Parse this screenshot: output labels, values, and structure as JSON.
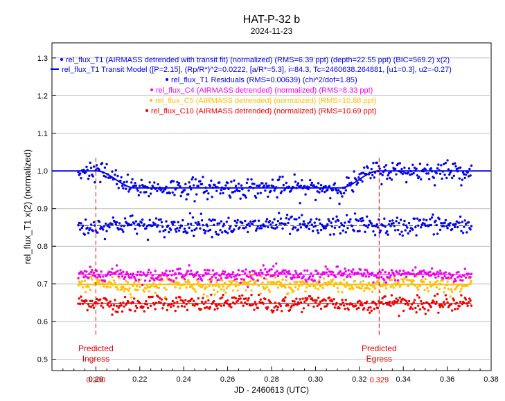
{
  "chart_data": {
    "type": "scatter",
    "title": "HAT-P-32 b",
    "subtitle": "2024-11-23",
    "xlabel": "JD - 2460613 (UTC)",
    "ylabel": "rel_flux_T1 x(2) (normalized)",
    "xlim": [
      0.18,
      0.38
    ],
    "ylim": [
      0.47,
      1.34
    ],
    "xticks": [
      0.2,
      0.22,
      0.24,
      0.26,
      0.28,
      0.3,
      0.32,
      0.34,
      0.36,
      0.38
    ],
    "xtick_labels": [
      "0.20",
      "0.22",
      "0.24",
      "0.26",
      "0.28",
      "0.30",
      "0.32",
      "0.34",
      "0.36",
      "0.38"
    ],
    "yticks": [
      0.5,
      0.6,
      0.7,
      0.8,
      0.9,
      1.0,
      1.1,
      1.2,
      1.3
    ],
    "ytick_labels": [
      "0.5",
      "0.6",
      "0.7",
      "0.8",
      "0.9",
      "1.0",
      "1.1",
      "1.2",
      "1.3"
    ],
    "grid": "horizontal",
    "legend_position": "top-center",
    "legend": [
      {
        "label": "rel_flux_T1 (AIRMASS detrended with transit fit) (normalized) (RMS=6.39 ppt) (depth=22.55 ppt) (BIC=569.2) x(2)",
        "color": "#0000ee",
        "marker": "dot"
      },
      {
        "label": "rel_flux_T1 Transit Model ([P=2.15], (Rp/R*)^2=0.0222, [a/R*=5.3], i=84.3, Tc=2460638.264881, [u1=0.3], u2=-0.27)",
        "color": "#0000ee",
        "marker": "line"
      },
      {
        "label": "rel_flux_T1 Residuals (RMS=0.00639) (chi^2/dof=1.85)",
        "color": "#0000ee",
        "marker": "dot"
      },
      {
        "label": "rel_flux_C4 (AIRMASS detrended) (normalized) (RMS=8.33 ppt)",
        "color": "#ee00ee",
        "marker": "dot"
      },
      {
        "label": "rel_flux_C5 (AIRMASS detrended) (normalized) (RMS=10.88 ppt)",
        "color": "#ffc000",
        "marker": "dot"
      },
      {
        "label": "rel_flux_C10 (AIRMASS detrended) (normalized) (RMS=10.69 ppt)",
        "color": "#ee0000",
        "marker": "dot"
      }
    ],
    "x_range": [
      0.192,
      0.371
    ],
    "n_points": 430,
    "model": {
      "name": "rel_flux_T1 Transit Model",
      "color": "#0000ee",
      "baseline": 1.0,
      "depth": 0.045,
      "ingress_start": 0.2,
      "ingress_end": 0.218,
      "egress_start": 0.311,
      "egress_end": 0.329
    },
    "series": [
      {
        "name": "rel_flux_T1 (AIRMASS detrended with transit fit)",
        "color": "#0000ee",
        "offset": 0.0,
        "scatter": 0.0135,
        "follows_model": true
      },
      {
        "name": "rel_flux_T1 Residuals",
        "color": "#0000ee",
        "baseline": 0.855,
        "scatter": 0.0125,
        "reference_line_color": "#555555"
      },
      {
        "name": "rel_flux_C4",
        "color": "#ee00ee",
        "baseline": 0.725,
        "scatter": 0.0085,
        "reference_line_color": "#ee00ee"
      },
      {
        "name": "rel_flux_C5",
        "color": "#ffc000",
        "baseline": 0.698,
        "scatter": 0.0105,
        "reference_line_color": "#ffc000"
      },
      {
        "name": "rel_flux_C10",
        "color": "#ee0000",
        "baseline": 0.648,
        "scatter": 0.0105,
        "reference_line_color": "#ee0000"
      }
    ],
    "annotations": [
      {
        "label_line1": "Predicted",
        "label_line2": "Ingress",
        "x": 0.2,
        "x_label": "0.200",
        "color": "#dd0000"
      },
      {
        "label_line1": "Predicted",
        "label_line2": "Egress",
        "x": 0.329,
        "x_label": "0.329",
        "color": "#dd0000"
      }
    ]
  }
}
